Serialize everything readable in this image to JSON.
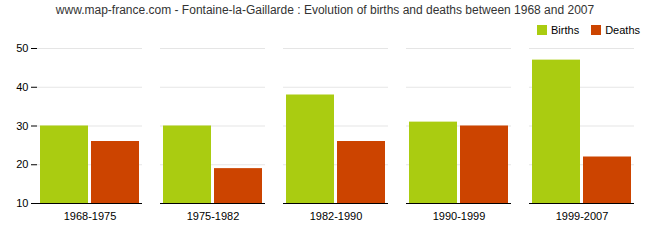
{
  "chart_data": {
    "type": "bar",
    "title": "www.map-france.com - Fontaine-la-Gaillarde : Evolution of births and deaths between 1968 and 2007",
    "categories": [
      "1968-1975",
      "1975-1982",
      "1982-1990",
      "1990-1999",
      "1999-2007"
    ],
    "series": [
      {
        "name": "Births",
        "color": "#aacc11",
        "values": [
          30,
          30,
          38,
          31,
          47
        ]
      },
      {
        "name": "Deaths",
        "color": "#cc4400",
        "values": [
          26,
          19,
          26,
          30,
          22
        ]
      }
    ],
    "ylim": [
      10,
      50
    ],
    "yticks": [
      10,
      20,
      30,
      40,
      50
    ],
    "grid": true,
    "legend": "upper right"
  }
}
